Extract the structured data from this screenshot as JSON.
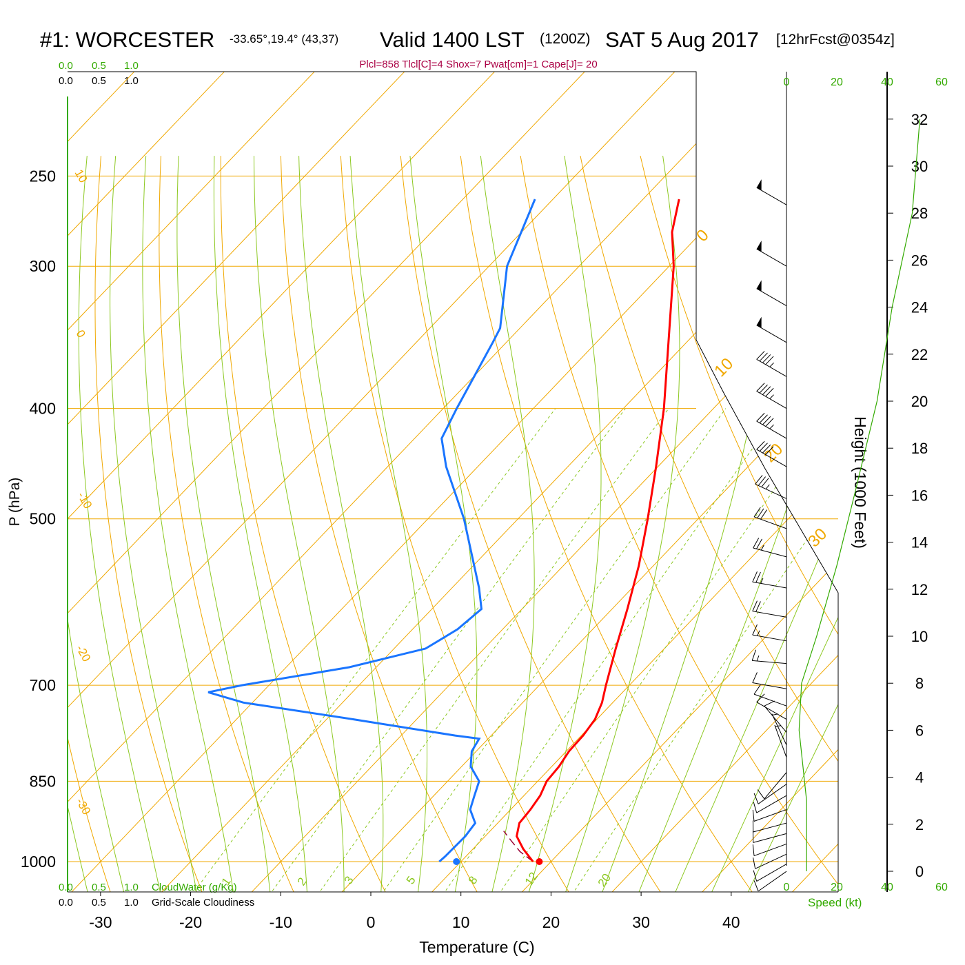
{
  "chart_data": {
    "type": "skew-t",
    "title": {
      "station": "#1: WORCESTER",
      "coords": "-33.65°,19.4° (43,37)",
      "valid": "Valid 1400 LST",
      "zulu": "(1200Z)",
      "date": "SAT 5 Aug 2017",
      "forecast": "[12hrFcst@0354z]"
    },
    "indices": "Plcl=858 Tlcl[C]=4 Shox=7 Pwat[cm]=1 Cape[J]= 20",
    "colors": {
      "temperature": "#ff0000",
      "dewpoint": "#1a75ff",
      "isotherm": "#f0a800",
      "dry_adiabat": "#f0a800",
      "moist_adiabat": "#8cc820",
      "mixing_ratio": "#8cc820",
      "green_text": "#33aa00",
      "title_text": "#000000",
      "indices_text": "#aa0044",
      "height_curve": "#33aa00"
    },
    "xlabel": "Temperature (C)",
    "ylabel": "P (hPa)",
    "xlim": [
      -35,
      45
    ],
    "x_ticks": [
      -30,
      -20,
      -10,
      0,
      10,
      20,
      30,
      40
    ],
    "pressure_labels": [
      250,
      300,
      400,
      500,
      700,
      850,
      1000
    ],
    "height_axis": {
      "label": "Height (1000 Feet)",
      "ticks": [
        0,
        2,
        4,
        6,
        8,
        10,
        12,
        14,
        16,
        18,
        20,
        22,
        24,
        26,
        28,
        30,
        32
      ]
    },
    "isotherm_labels": [
      "10",
      "0",
      "-10",
      "-20",
      "-30"
    ],
    "dry_adiabat_labels": [
      "0",
      "10",
      "20",
      "30"
    ],
    "mixing_ratio_labels": [
      "1",
      "2",
      "3",
      "5",
      "8",
      "12",
      "20"
    ],
    "cloud_scales": {
      "top_values": [
        "0.0",
        "0.5",
        "1.0"
      ],
      "bottom_values": [
        "0.0",
        "0.5",
        "1.0"
      ],
      "cloudwater_label": "CloudWater (g/Kg)",
      "cloudiness_label": "Grid-Scale Cloudiness"
    },
    "speed_scale": {
      "ticks": [
        "0",
        "20",
        "40",
        "60"
      ],
      "label": "Speed (kt)"
    },
    "temperature_profile": [
      {
        "p": 1000,
        "t": 18.0
      },
      {
        "p": 975,
        "t": 15.6
      },
      {
        "p": 950,
        "t": 13.5
      },
      {
        "p": 925,
        "t": 12.4
      },
      {
        "p": 900,
        "t": 12.2
      },
      {
        "p": 875,
        "t": 11.8
      },
      {
        "p": 850,
        "t": 11.0
      },
      {
        "p": 825,
        "t": 10.8
      },
      {
        "p": 800,
        "t": 10.3
      },
      {
        "p": 775,
        "t": 10.2
      },
      {
        "p": 750,
        "t": 9.8
      },
      {
        "p": 725,
        "t": 8.8
      },
      {
        "p": 700,
        "t": 7.4
      },
      {
        "p": 650,
        "t": 4.6
      },
      {
        "p": 600,
        "t": 1.7
      },
      {
        "p": 550,
        "t": -1.6
      },
      {
        "p": 500,
        "t": -5.6
      },
      {
        "p": 450,
        "t": -10.2
      },
      {
        "p": 400,
        "t": -15.5
      },
      {
        "p": 350,
        "t": -22.0
      },
      {
        "p": 300,
        "t": -29.5
      },
      {
        "p": 280,
        "t": -33.3
      },
      {
        "p": 262,
        "t": -36.0
      }
    ],
    "dewpoint_profile": [
      {
        "p": 1000,
        "t": 7.6
      },
      {
        "p": 990,
        "t": 7.7
      },
      {
        "p": 950,
        "t": 7.8
      },
      {
        "p": 925,
        "t": 7.5
      },
      {
        "p": 900,
        "t": 5.5
      },
      {
        "p": 875,
        "t": 4.5
      },
      {
        "p": 850,
        "t": 3.5
      },
      {
        "p": 825,
        "t": 1.0
      },
      {
        "p": 800,
        "t": -0.5
      },
      {
        "p": 780,
        "t": -1.0
      },
      {
        "p": 775,
        "t": -4.0
      },
      {
        "p": 750,
        "t": -17.0
      },
      {
        "p": 725,
        "t": -31.0
      },
      {
        "p": 710,
        "t": -36.0
      },
      {
        "p": 700,
        "t": -33.0
      },
      {
        "p": 675,
        "t": -23.0
      },
      {
        "p": 650,
        "t": -16.5
      },
      {
        "p": 625,
        "t": -15.0
      },
      {
        "p": 600,
        "t": -14.5
      },
      {
        "p": 575,
        "t": -17.0
      },
      {
        "p": 500,
        "t": -26.0
      },
      {
        "p": 450,
        "t": -33.5
      },
      {
        "p": 425,
        "t": -37.0
      },
      {
        "p": 400,
        "t": -38.5
      },
      {
        "p": 350,
        "t": -41.5
      },
      {
        "p": 340,
        "t": -42.2
      },
      {
        "p": 300,
        "t": -48.0
      },
      {
        "p": 262,
        "t": -52.0
      }
    ],
    "parcel_path": [
      {
        "p": 1000,
        "t": 18.0
      },
      {
        "p": 980,
        "t": 15.5
      },
      {
        "p": 960,
        "t": 13.5
      },
      {
        "p": 940,
        "t": 11.5
      }
    ],
    "surface_temperature": 18.7,
    "surface_dewpoint": 9.5,
    "height_curve": [
      {
        "kft": 0,
        "speed": 8
      },
      {
        "kft": 3,
        "speed": 8
      },
      {
        "kft": 6,
        "speed": 5
      },
      {
        "kft": 8,
        "speed": 6
      },
      {
        "kft": 10,
        "speed": 12
      },
      {
        "kft": 13,
        "speed": 20
      },
      {
        "kft": 16,
        "speed": 27
      },
      {
        "kft": 20,
        "speed": 36
      },
      {
        "kft": 24,
        "speed": 42
      },
      {
        "kft": 28,
        "speed": 50
      },
      {
        "kft": 32,
        "speed": 53
      }
    ],
    "wind_barbs": [
      {
        "p": 265,
        "dir": 300,
        "kt": 50
      },
      {
        "p": 300,
        "dir": 300,
        "kt": 50
      },
      {
        "p": 325,
        "dir": 300,
        "kt": 50
      },
      {
        "p": 350,
        "dir": 300,
        "kt": 50
      },
      {
        "p": 375,
        "dir": 300,
        "kt": 45
      },
      {
        "p": 400,
        "dir": 300,
        "kt": 45
      },
      {
        "p": 425,
        "dir": 300,
        "kt": 45
      },
      {
        "p": 450,
        "dir": 300,
        "kt": 40
      },
      {
        "p": 480,
        "dir": 295,
        "kt": 35
      },
      {
        "p": 510,
        "dir": 290,
        "kt": 30
      },
      {
        "p": 540,
        "dir": 285,
        "kt": 25
      },
      {
        "p": 575,
        "dir": 280,
        "kt": 25
      },
      {
        "p": 610,
        "dir": 280,
        "kt": 20
      },
      {
        "p": 640,
        "dir": 280,
        "kt": 15
      },
      {
        "p": 670,
        "dir": 275,
        "kt": 15
      },
      {
        "p": 705,
        "dir": 280,
        "kt": 10
      },
      {
        "p": 730,
        "dir": 290,
        "kt": 10
      },
      {
        "p": 750,
        "dir": 300,
        "kt": 10
      },
      {
        "p": 770,
        "dir": 320,
        "kt": 10
      },
      {
        "p": 790,
        "dir": 335,
        "kt": 5
      },
      {
        "p": 810,
        "dir": 340,
        "kt": 5
      },
      {
        "p": 835,
        "dir": 220,
        "kt": 10
      },
      {
        "p": 855,
        "dir": 235,
        "kt": 10
      },
      {
        "p": 875,
        "dir": 240,
        "kt": 10
      },
      {
        "p": 900,
        "dir": 250,
        "kt": 10
      },
      {
        "p": 925,
        "dir": 255,
        "kt": 10
      },
      {
        "p": 945,
        "dir": 255,
        "kt": 10
      },
      {
        "p": 965,
        "dir": 250,
        "kt": 10
      },
      {
        "p": 985,
        "dir": 245,
        "kt": 10
      },
      {
        "p": 1005,
        "dir": 240,
        "kt": 10
      },
      {
        "p": 1020,
        "dir": 235,
        "kt": 10
      }
    ]
  }
}
